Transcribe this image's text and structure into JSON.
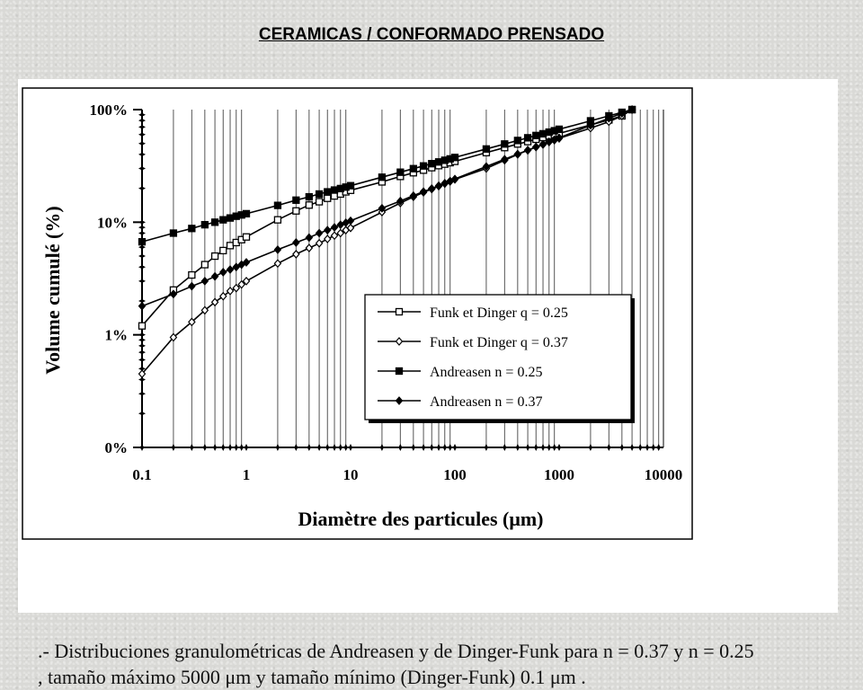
{
  "slide": {
    "title": "CERAMICAS / CONFORMADO PRENSADO",
    "caption_line1": ".- Distribuciones granulométricas de Andreasen y de Dinger-Funk para n = 0.37 y n = 0.25",
    "caption_line2": ", tamaño máximo 5000 μm y tamaño mínimo (Dinger-Funk) 0.1 μm ."
  },
  "chart_data": {
    "type": "line",
    "xlabel": "Diamètre des particules (μm)",
    "ylabel": "Volume cumulé (%)",
    "xscale": "log",
    "xlim": [
      0.1,
      10000
    ],
    "ylim": [
      0.1,
      100
    ],
    "x_tick_labels": [
      "0.1",
      "1",
      "10",
      "100",
      "1000",
      "10000"
    ],
    "y_tick_labels": [
      "0%",
      "1%",
      "10%",
      "100%"
    ],
    "grid": "vertical minor gridlines",
    "legend_position": "lower-right",
    "colors": {
      "series": "#000000",
      "grid": "#555555",
      "panel": "#ffffff",
      "background": "#d9d9d6"
    },
    "series": [
      {
        "name": "Funk et Dinger q = 0.25",
        "marker": "open-square",
        "points": [
          [
            0.1,
            1.2
          ],
          [
            0.2,
            2.5
          ],
          [
            0.3,
            3.4
          ],
          [
            0.4,
            4.2
          ],
          [
            0.5,
            5.0
          ],
          [
            0.6,
            5.6
          ],
          [
            0.7,
            6.2
          ],
          [
            0.8,
            6.6
          ],
          [
            0.9,
            7.0
          ],
          [
            1,
            7.4
          ],
          [
            2,
            10.5
          ],
          [
            3,
            12.6
          ],
          [
            4,
            14.2
          ],
          [
            5,
            15.2
          ],
          [
            6,
            16.3
          ],
          [
            7,
            17.1
          ],
          [
            8,
            17.8
          ],
          [
            9,
            18.6
          ],
          [
            10,
            19.2
          ],
          [
            20,
            22.8
          ],
          [
            30,
            25.5
          ],
          [
            40,
            27.5
          ],
          [
            50,
            29.0
          ],
          [
            60,
            30.5
          ],
          [
            70,
            31.8
          ],
          [
            80,
            32.8
          ],
          [
            90,
            33.8
          ],
          [
            100,
            34.7
          ],
          [
            200,
            41.5
          ],
          [
            300,
            46.0
          ],
          [
            400,
            49.5
          ],
          [
            500,
            52.0
          ],
          [
            600,
            54.5
          ],
          [
            700,
            56.5
          ],
          [
            800,
            58.5
          ],
          [
            900,
            60.0
          ],
          [
            1000,
            61.5
          ],
          [
            2000,
            73.0
          ],
          [
            3000,
            81.0
          ],
          [
            4000,
            88.0
          ],
          [
            5000,
            100
          ]
        ]
      },
      {
        "name": "Funk et Dinger q = 0.37",
        "marker": "open-diamond",
        "points": [
          [
            0.1,
            0.45
          ],
          [
            0.2,
            0.95
          ],
          [
            0.3,
            1.3
          ],
          [
            0.4,
            1.65
          ],
          [
            0.5,
            1.95
          ],
          [
            0.6,
            2.2
          ],
          [
            0.7,
            2.45
          ],
          [
            0.8,
            2.6
          ],
          [
            0.9,
            2.8
          ],
          [
            1,
            3.0
          ],
          [
            2,
            4.3
          ],
          [
            3,
            5.2
          ],
          [
            4,
            5.9
          ],
          [
            5,
            6.5
          ],
          [
            6,
            7.1
          ],
          [
            7,
            7.6
          ],
          [
            8,
            8.0
          ],
          [
            9,
            8.5
          ],
          [
            10,
            8.9
          ],
          [
            20,
            12.3
          ],
          [
            30,
            14.8
          ],
          [
            40,
            16.8
          ],
          [
            50,
            18.4
          ],
          [
            60,
            19.7
          ],
          [
            70,
            20.9
          ],
          [
            80,
            22.0
          ],
          [
            90,
            23.0
          ],
          [
            100,
            24.0
          ],
          [
            200,
            30.0
          ],
          [
            300,
            35.5
          ],
          [
            400,
            40.0
          ],
          [
            500,
            43.5
          ],
          [
            600,
            46.5
          ],
          [
            700,
            49.0
          ],
          [
            800,
            51.5
          ],
          [
            900,
            53.5
          ],
          [
            1000,
            55.5
          ],
          [
            2000,
            68.5
          ],
          [
            3000,
            78.0
          ],
          [
            4000,
            88.0
          ],
          [
            5000,
            100
          ]
        ]
      },
      {
        "name": "Andreasen n = 0.25",
        "marker": "filled-square",
        "points": [
          [
            0.1,
            6.7
          ],
          [
            0.2,
            8.0
          ],
          [
            0.3,
            8.8
          ],
          [
            0.4,
            9.5
          ],
          [
            0.5,
            10.0
          ],
          [
            0.6,
            10.5
          ],
          [
            0.7,
            10.9
          ],
          [
            0.8,
            11.3
          ],
          [
            0.9,
            11.6
          ],
          [
            1,
            11.9
          ],
          [
            2,
            14.1
          ],
          [
            3,
            15.7
          ],
          [
            4,
            16.8
          ],
          [
            5,
            17.8
          ],
          [
            6,
            18.6
          ],
          [
            7,
            19.3
          ],
          [
            8,
            19.9
          ],
          [
            9,
            20.5
          ],
          [
            10,
            21.1
          ],
          [
            20,
            25.1
          ],
          [
            30,
            27.8
          ],
          [
            40,
            29.9
          ],
          [
            50,
            31.6
          ],
          [
            60,
            33.1
          ],
          [
            70,
            34.3
          ],
          [
            80,
            35.5
          ],
          [
            90,
            36.5
          ],
          [
            100,
            37.6
          ],
          [
            200,
            44.7
          ],
          [
            300,
            49.5
          ],
          [
            400,
            53.2
          ],
          [
            500,
            56.2
          ],
          [
            600,
            58.9
          ],
          [
            700,
            61.0
          ],
          [
            800,
            63.1
          ],
          [
            900,
            64.9
          ],
          [
            1000,
            66.9
          ],
          [
            2000,
            79.5
          ],
          [
            3000,
            88.0
          ],
          [
            4000,
            94.6
          ],
          [
            5000,
            100
          ]
        ]
      },
      {
        "name": "Andreasen n = 0.37",
        "marker": "filled-diamond",
        "points": [
          [
            0.1,
            1.8
          ],
          [
            0.2,
            2.3
          ],
          [
            0.3,
            2.7
          ],
          [
            0.4,
            3.0
          ],
          [
            0.5,
            3.3
          ],
          [
            0.6,
            3.6
          ],
          [
            0.7,
            3.8
          ],
          [
            0.8,
            4.0
          ],
          [
            0.9,
            4.2
          ],
          [
            1,
            4.4
          ],
          [
            2,
            5.7
          ],
          [
            3,
            6.6
          ],
          [
            4,
            7.3
          ],
          [
            5,
            8.0
          ],
          [
            6,
            8.5
          ],
          [
            7,
            9.0
          ],
          [
            8,
            9.5
          ],
          [
            9,
            9.9
          ],
          [
            10,
            10.3
          ],
          [
            20,
            13.3
          ],
          [
            30,
            15.4
          ],
          [
            40,
            17.2
          ],
          [
            50,
            18.7
          ],
          [
            60,
            19.9
          ],
          [
            70,
            21.1
          ],
          [
            80,
            22.2
          ],
          [
            90,
            23.2
          ],
          [
            100,
            24.2
          ],
          [
            200,
            31.2
          ],
          [
            300,
            36.2
          ],
          [
            400,
            40.3
          ],
          [
            500,
            43.6
          ],
          [
            600,
            46.6
          ],
          [
            700,
            49.3
          ],
          [
            800,
            51.8
          ],
          [
            900,
            54.1
          ],
          [
            1000,
            56.2
          ],
          [
            2000,
            72.5
          ],
          [
            3000,
            83.8
          ],
          [
            4000,
            92.8
          ],
          [
            5000,
            100
          ]
        ]
      }
    ]
  }
}
